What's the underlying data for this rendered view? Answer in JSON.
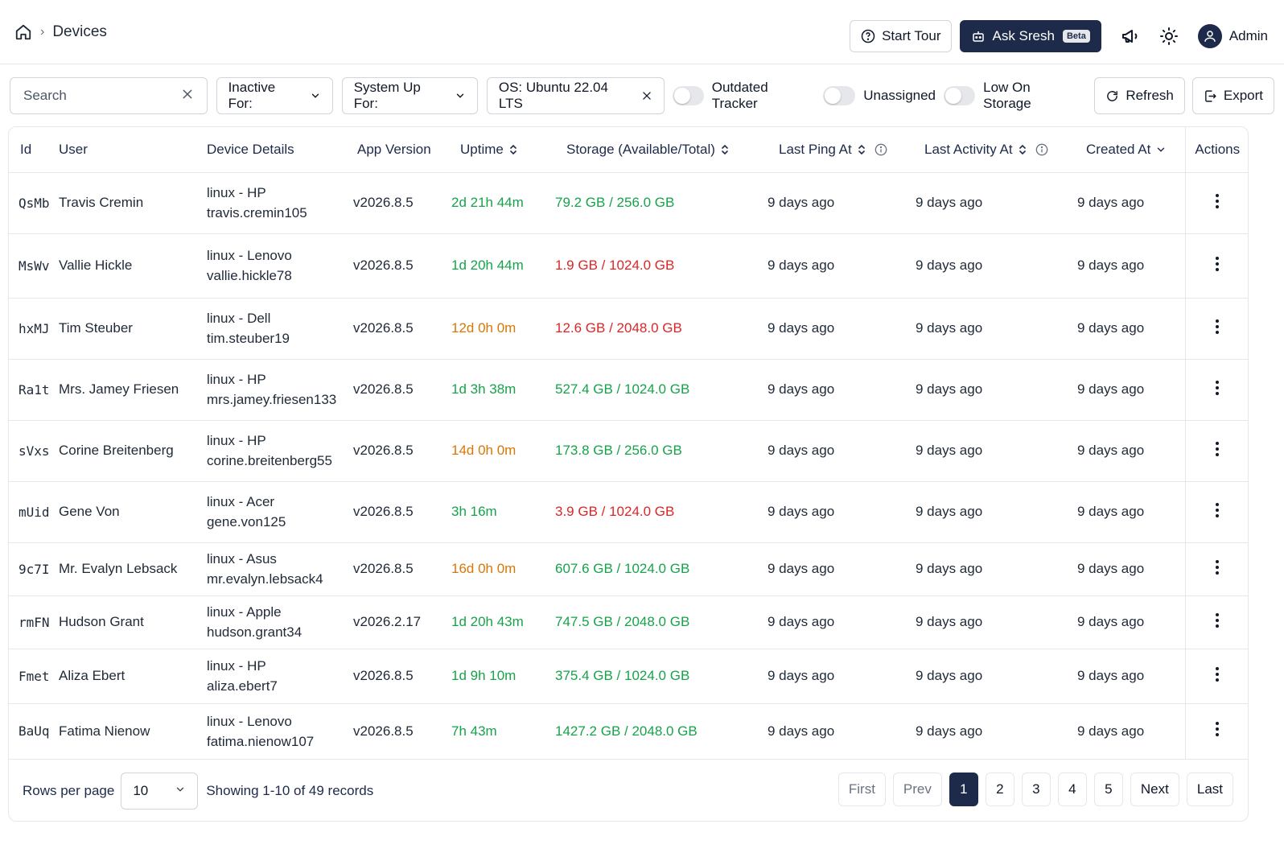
{
  "header": {
    "breadcrumb_title": "Devices",
    "start_tour": "Start Tour",
    "ask": "Ask Sresh",
    "beta": "Beta",
    "user": "Admin"
  },
  "toolbar": {
    "search_placeholder": "Search",
    "inactive_for": "Inactive For:",
    "system_up_for": "System Up For:",
    "os_filter": "OS: Ubuntu 22.04 LTS",
    "toggle_outdated": "Outdated Tracker",
    "toggle_unassigned": "Unassigned",
    "toggle_low_storage": "Low On Storage",
    "refresh": "Refresh",
    "export": "Export"
  },
  "table": {
    "columns": {
      "id": "Id",
      "user": "User",
      "details": "Device Details",
      "version": "App Version",
      "uptime": "Uptime",
      "storage": "Storage (Available/Total)",
      "last_ping": "Last Ping At",
      "last_activity": "Last Activity At",
      "created": "Created At",
      "actions": "Actions"
    },
    "rows": [
      {
        "id": "QsMb",
        "user": "Travis Cremin",
        "os": "linux - HP",
        "username": "travis.cremin105",
        "version": "v2026.8.5",
        "uptime": "2d 21h 44m",
        "uptime_status": "green",
        "storage": "79.2 GB / 256.0 GB",
        "storage_status": "green",
        "last_ping": "9 days ago",
        "last_activity": "9 days ago",
        "created": "9 days ago"
      },
      {
        "id": "MsWv",
        "user": "Vallie Hickle",
        "os": "linux - Lenovo",
        "username": "vallie.hickle78",
        "version": "v2026.8.5",
        "uptime": "1d 20h 44m",
        "uptime_status": "green",
        "storage": "1.9 GB / 1024.0 GB",
        "storage_status": "red",
        "last_ping": "9 days ago",
        "last_activity": "9 days ago",
        "created": "9 days ago"
      },
      {
        "id": "hxMJ",
        "user": "Tim Steuber",
        "os": "linux - Dell",
        "username": "tim.steuber19",
        "version": "v2026.8.5",
        "uptime": "12d 0h 0m",
        "uptime_status": "orange",
        "storage": "12.6 GB / 2048.0 GB",
        "storage_status": "red",
        "last_ping": "9 days ago",
        "last_activity": "9 days ago",
        "created": "9 days ago"
      },
      {
        "id": "Ra1t",
        "user": "Mrs. Jamey Friesen",
        "os": "linux - HP",
        "username": "mrs.jamey.friesen133",
        "version": "v2026.8.5",
        "uptime": "1d 3h 38m",
        "uptime_status": "green",
        "storage": "527.4 GB / 1024.0 GB",
        "storage_status": "green",
        "last_ping": "9 days ago",
        "last_activity": "9 days ago",
        "created": "9 days ago"
      },
      {
        "id": "sVxs",
        "user": "Corine Breitenberg",
        "os": "linux - HP",
        "username": "corine.breitenberg55",
        "version": "v2026.8.5",
        "uptime": "14d 0h 0m",
        "uptime_status": "orange",
        "storage": "173.8 GB / 256.0 GB",
        "storage_status": "green",
        "last_ping": "9 days ago",
        "last_activity": "9 days ago",
        "created": "9 days ago"
      },
      {
        "id": "mUid",
        "user": "Gene Von",
        "os": "linux - Acer",
        "username": "gene.von125",
        "version": "v2026.8.5",
        "uptime": "3h 16m",
        "uptime_status": "green",
        "storage": "3.9 GB / 1024.0 GB",
        "storage_status": "red",
        "last_ping": "9 days ago",
        "last_activity": "9 days ago",
        "created": "9 days ago"
      },
      {
        "id": "9c7I",
        "user": "Mr. Evalyn Lebsack",
        "os": "linux - Asus",
        "username": "mr.evalyn.lebsack4",
        "version": "v2026.8.5",
        "uptime": "16d 0h 0m",
        "uptime_status": "orange",
        "storage": "607.6 GB / 1024.0 GB",
        "storage_status": "green",
        "last_ping": "9 days ago",
        "last_activity": "9 days ago",
        "created": "9 days ago"
      },
      {
        "id": "rmFN",
        "user": "Hudson Grant",
        "os": "linux - Apple",
        "username": "hudson.grant34",
        "version": "v2026.2.17",
        "uptime": "1d 20h 43m",
        "uptime_status": "green",
        "storage": "747.5 GB / 2048.0 GB",
        "storage_status": "green",
        "last_ping": "9 days ago",
        "last_activity": "9 days ago",
        "created": "9 days ago"
      },
      {
        "id": "Fmet",
        "user": "Aliza Ebert",
        "os": "linux - HP",
        "username": "aliza.ebert7",
        "version": "v2026.8.5",
        "uptime": "1d 9h 10m",
        "uptime_status": "green",
        "storage": "375.4 GB / 1024.0 GB",
        "storage_status": "green",
        "last_ping": "9 days ago",
        "last_activity": "9 days ago",
        "created": "9 days ago"
      },
      {
        "id": "BaUq",
        "user": "Fatima Nienow",
        "os": "linux - Lenovo",
        "username": "fatima.nienow107",
        "version": "v2026.8.5",
        "uptime": "7h 43m",
        "uptime_status": "green",
        "storage": "1427.2 GB / 2048.0 GB",
        "storage_status": "green",
        "last_ping": "9 days ago",
        "last_activity": "9 days ago",
        "created": "9 days ago"
      }
    ]
  },
  "footer": {
    "rows_per_page_label": "Rows per page",
    "rows_per_page": "10",
    "showing": "Showing 1-10 of 49 records",
    "first": "First",
    "prev": "Prev",
    "pages": [
      "1",
      "2",
      "3",
      "4",
      "5"
    ],
    "current_page": "1",
    "next": "Next",
    "last": "Last"
  },
  "colors": {
    "primary": "#1e2a4a",
    "green": "#16a34a",
    "orange": "#d97706",
    "red": "#dc2626"
  },
  "icons": [
    "home-icon",
    "help-circle-icon",
    "bot-icon",
    "megaphone-icon",
    "sun-icon",
    "user-icon",
    "close-icon",
    "chevron-down-icon",
    "refresh-icon",
    "export-icon",
    "sort-icon",
    "info-icon",
    "kebab-icon"
  ]
}
